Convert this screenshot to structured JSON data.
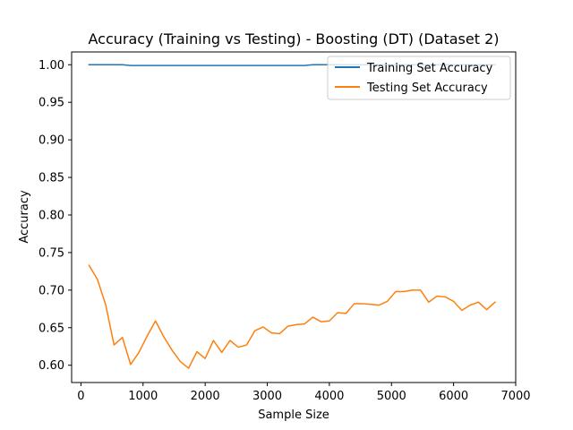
{
  "chart_data": {
    "type": "line",
    "title": "Accuracy (Training vs Testing) - Boosting (DT) (Dataset 2)",
    "xlabel": "Sample Size",
    "ylabel": "Accuracy",
    "xlim": [
      -150,
      7000
    ],
    "ylim": [
      0.577,
      1.017
    ],
    "xticks": [
      0,
      1000,
      2000,
      3000,
      4000,
      5000,
      6000,
      7000
    ],
    "xtick_labels": [
      "0",
      "1000",
      "2000",
      "3000",
      "4000",
      "5000",
      "6000",
      "7000"
    ],
    "yticks": [
      0.6,
      0.65,
      0.7,
      0.75,
      0.8,
      0.85,
      0.9,
      0.95,
      1.0
    ],
    "ytick_labels": [
      "0.60",
      "0.65",
      "0.70",
      "0.75",
      "0.80",
      "0.85",
      "0.90",
      "0.95",
      "1.00"
    ],
    "grid": false,
    "legend_position": "top-right",
    "x": [
      130,
      267,
      400,
      533,
      667,
      800,
      933,
      1067,
      1200,
      1333,
      1467,
      1600,
      1733,
      1867,
      2000,
      2133,
      2267,
      2400,
      2533,
      2667,
      2800,
      2933,
      3067,
      3200,
      3333,
      3467,
      3600,
      3733,
      3867,
      4000,
      4133,
      4267,
      4400,
      4533,
      4667,
      4800,
      4933,
      5067,
      5200,
      5333,
      5467,
      5600,
      5733,
      5867,
      6000,
      6133,
      6267,
      6400,
      6533,
      6667
    ],
    "series": [
      {
        "name": "Training Set Accuracy",
        "color": "#1f77b4",
        "values": [
          1.0,
          1.0,
          1.0,
          1.0,
          1.0,
          0.999,
          0.999,
          0.999,
          0.999,
          0.999,
          0.999,
          0.999,
          0.999,
          0.999,
          0.999,
          0.999,
          0.999,
          0.999,
          0.999,
          0.999,
          0.999,
          0.999,
          0.999,
          0.999,
          0.999,
          0.999,
          0.999,
          1.0,
          1.0,
          1.0,
          1.0,
          1.0,
          1.0,
          1.0,
          1.0,
          1.0,
          1.0,
          1.0,
          1.0,
          1.0,
          1.0,
          1.0,
          1.0,
          1.0,
          1.0,
          1.0,
          1.0,
          1.0,
          1.0,
          1.0
        ]
      },
      {
        "name": "Testing Set Accuracy",
        "color": "#ff7f0e",
        "values": [
          0.733,
          0.714,
          0.68,
          0.627,
          0.637,
          0.601,
          0.617,
          0.639,
          0.659,
          0.638,
          0.62,
          0.605,
          0.596,
          0.618,
          0.609,
          0.633,
          0.617,
          0.633,
          0.624,
          0.627,
          0.646,
          0.651,
          0.643,
          0.642,
          0.652,
          0.654,
          0.655,
          0.664,
          0.658,
          0.659,
          0.67,
          0.669,
          0.682,
          0.682,
          0.681,
          0.68,
          0.685,
          0.698,
          0.698,
          0.7,
          0.7,
          0.684,
          0.692,
          0.691,
          0.685,
          0.673,
          0.68,
          0.684,
          0.674,
          0.684
        ]
      }
    ]
  }
}
